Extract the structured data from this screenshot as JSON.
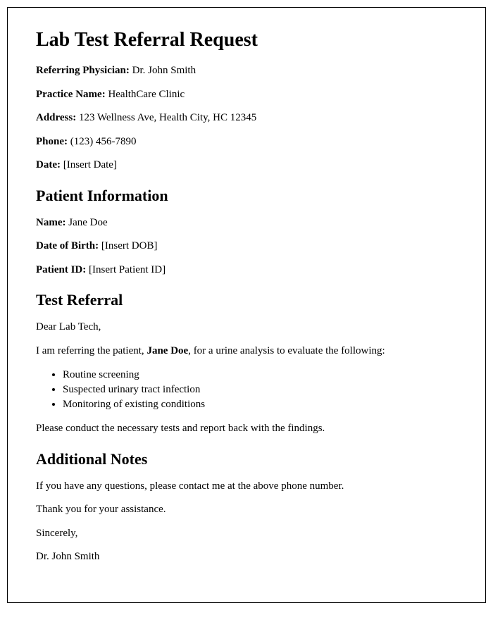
{
  "document": {
    "title": "Lab Test Referral Request",
    "border_color": "#000000",
    "background_color": "#ffffff",
    "text_color": "#000000",
    "font_family": "Times New Roman",
    "title_fontsize": 28,
    "h2_fontsize": 22,
    "body_fontsize": 15
  },
  "physician": {
    "label": "Referring Physician:",
    "value": " Dr. John Smith"
  },
  "practice": {
    "label": "Practice Name:",
    "value": " HealthCare Clinic"
  },
  "address": {
    "label": "Address:",
    "value": " 123 Wellness Ave, Health City, HC 12345"
  },
  "phone": {
    "label": "Phone:",
    "value": " (123) 456-7890"
  },
  "date": {
    "label": "Date:",
    "value": " [Insert Date]"
  },
  "sections": {
    "patient_info_heading": "Patient Information",
    "test_referral_heading": "Test Referral",
    "additional_notes_heading": "Additional Notes"
  },
  "patient": {
    "name_label": "Name:",
    "name_value": " Jane Doe",
    "dob_label": "Date of Birth:",
    "dob_value": " [Insert DOB]",
    "id_label": "Patient ID:",
    "id_value": " [Insert Patient ID]"
  },
  "referral": {
    "salutation": "Dear Lab Tech,",
    "intro_prefix": "I am referring the patient, ",
    "intro_patient_name": "Jane Doe",
    "intro_suffix": ", for a urine analysis to evaluate the following:",
    "reasons": [
      "Routine screening",
      "Suspected urinary tract infection",
      "Monitoring of existing conditions"
    ],
    "instruction": "Please conduct the necessary tests and report back with the findings."
  },
  "notes": {
    "contact_line": "If you have any questions, please contact me at the above phone number.",
    "thanks_line": "Thank you for your assistance.",
    "closing": "Sincerely,",
    "signature": "Dr. John Smith"
  }
}
